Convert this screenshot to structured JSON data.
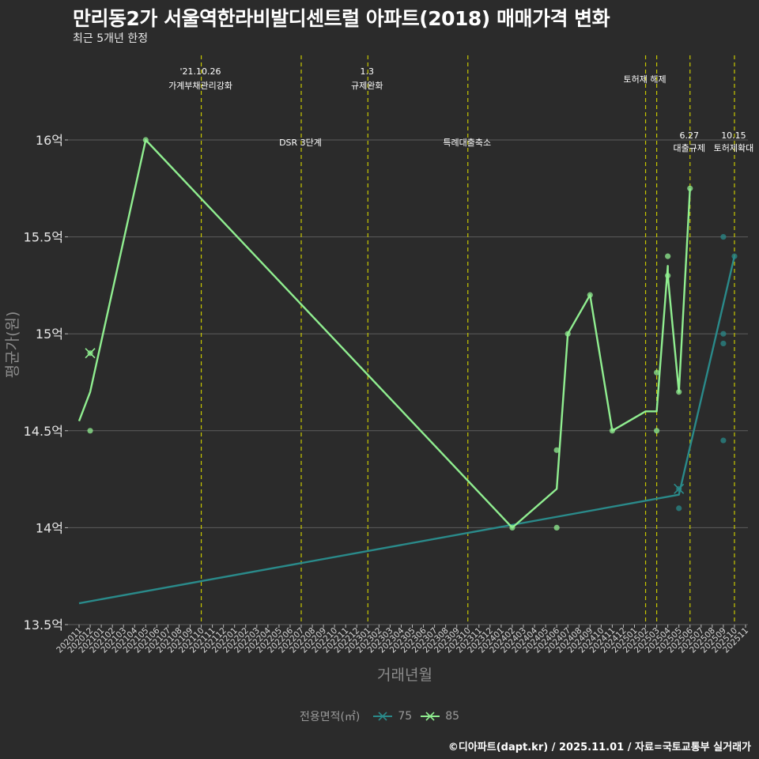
{
  "title": "만리동2가 서울역한라비발디센트럴 아파트(2018) 매매가격 변화",
  "subtitle": "최근 5개년 한정",
  "caption": "©디아파트(dapt.kr) / 2025.11.01 / 자료=국토교통부 실거래가",
  "colors": {
    "background": "#2b2b2b",
    "grid": "#5c5c5c",
    "event_line": "#c8c800",
    "series_75": "#2a8a8a",
    "series_85": "#90ee90"
  },
  "chart_data": {
    "type": "line",
    "xlabel": "거래년월",
    "ylabel": "평균가(원)",
    "ylim": [
      13.5,
      16.5
    ],
    "yticks": [
      13.5,
      14,
      14.5,
      15,
      15.5,
      16
    ],
    "ytick_labels": [
      "13.5억",
      "14억",
      "14.5억",
      "15억",
      "15.5억",
      "16억"
    ],
    "categories": [
      "202011",
      "202012",
      "202101",
      "202102",
      "202103",
      "202104",
      "202105",
      "202106",
      "202107",
      "202108",
      "202109",
      "202110",
      "202111",
      "202112",
      "202201",
      "202202",
      "202203",
      "202204",
      "202205",
      "202206",
      "202207",
      "202208",
      "202209",
      "202210",
      "202211",
      "202212",
      "202301",
      "202302",
      "202303",
      "202304",
      "202305",
      "202306",
      "202307",
      "202308",
      "202309",
      "202310",
      "202311",
      "202312",
      "202401",
      "202402",
      "202403",
      "202404",
      "202405",
      "202406",
      "202407",
      "202408",
      "202409",
      "202410",
      "202411",
      "202412",
      "202501",
      "202502",
      "202503",
      "202504",
      "202505",
      "202506",
      "202507",
      "202508",
      "202509",
      "202510",
      "202511"
    ],
    "series": [
      {
        "name": "75",
        "color": "#2a8a8a",
        "trend": [
          [
            "202011",
            13.61
          ],
          [
            "202505",
            14.17
          ],
          [
            "202510",
            15.4
          ]
        ],
        "points": [
          [
            "202505",
            14.2
          ],
          [
            "202505",
            14.1
          ],
          [
            "202509",
            15.5
          ],
          [
            "202509",
            15.0
          ],
          [
            "202509",
            14.95
          ],
          [
            "202509",
            14.45
          ],
          [
            "202510",
            15.4
          ]
        ],
        "x_markers": [
          [
            "202505",
            14.2
          ]
        ]
      },
      {
        "name": "85",
        "color": "#90ee90",
        "trend": [
          [
            "202011",
            14.55
          ],
          [
            "202012",
            14.7
          ],
          [
            "202105",
            16.0
          ],
          [
            "202402",
            14.0
          ],
          [
            "202406",
            14.2
          ],
          [
            "202407",
            15.0
          ],
          [
            "202409",
            15.2
          ],
          [
            "202411",
            14.5
          ],
          [
            "202502",
            14.6
          ],
          [
            "202503",
            14.6
          ],
          [
            "202504",
            15.35
          ],
          [
            "202504",
            15.3
          ],
          [
            "202505",
            14.7
          ],
          [
            "202506",
            15.75
          ]
        ],
        "points": [
          [
            "202012",
            14.9
          ],
          [
            "202012",
            14.5
          ],
          [
            "202105",
            16.0
          ],
          [
            "202402",
            14.0
          ],
          [
            "202406",
            14.4
          ],
          [
            "202406",
            14.0
          ],
          [
            "202407",
            15.0
          ],
          [
            "202409",
            15.2
          ],
          [
            "202411",
            14.5
          ],
          [
            "202503",
            14.8
          ],
          [
            "202503",
            14.5
          ],
          [
            "202504",
            15.4
          ],
          [
            "202504",
            15.3
          ],
          [
            "202505",
            14.7
          ],
          [
            "202506",
            15.75
          ]
        ],
        "x_markers": [
          [
            "202012",
            14.9
          ]
        ]
      }
    ],
    "events": [
      {
        "month": "202110",
        "label_top": "'21.10.26",
        "label_bottom": "가계부채관리강화",
        "row": "high"
      },
      {
        "month": "202207",
        "label_top": "",
        "label_bottom": "DSR 3단계",
        "row": "low"
      },
      {
        "month": "202301",
        "label_top": "1.3",
        "label_bottom": "규제완화",
        "row": "high"
      },
      {
        "month": "202310",
        "label_top": "",
        "label_bottom": "특례대출축소",
        "row": "low"
      },
      {
        "month": "202502",
        "label_top": "",
        "label_bottom": "토허제 해제",
        "row": "mid"
      },
      {
        "month": "202503",
        "label_top": "",
        "label_bottom": "",
        "row": "none"
      },
      {
        "month": "202506",
        "label_top": "6.27",
        "label_bottom": "대출규제",
        "row": "right"
      },
      {
        "month": "202510",
        "label_top": "10.15",
        "label_bottom": "토허제확대",
        "row": "right"
      }
    ],
    "legend": {
      "title": "전용면적(㎡)",
      "items": [
        "75",
        "85"
      ]
    }
  }
}
